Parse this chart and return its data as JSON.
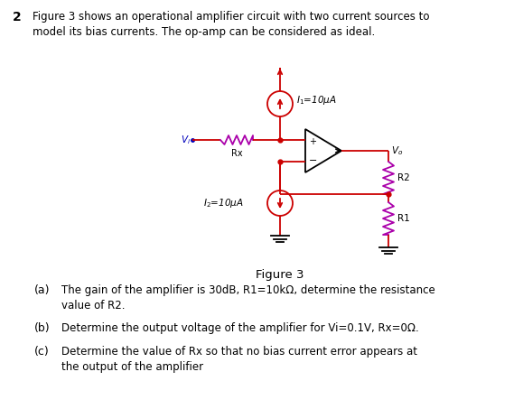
{
  "background_color": "#ffffff",
  "title_num": "2",
  "title_text": "Figure 3 shows an operational amplifier circuit with two current sources to\nmodel its bias currents. The op-amp can be considered as ideal.",
  "figure_label": "Figure 3",
  "part_a_label": "(a)",
  "part_a_text": "The gain of the amplifier is 30dB, R1=10kΩ, determine the resistance\nvalue of R2.",
  "part_b_label": "(b)",
  "part_b_text": "Determine the output voltage of the amplifier for Vi=0.1V, Rx=0Ω.",
  "part_c_label": "(c)",
  "part_c_text": "Determine the value of Rx so that no bias current error appears at\nthe output of the amplifier",
  "red": "#cc0000",
  "blue": "#0000bb",
  "black": "#000000",
  "purple": "#aa00aa",
  "text_color": "#000000"
}
